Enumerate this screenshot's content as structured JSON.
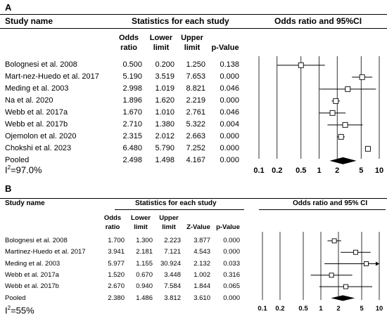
{
  "chart_data": [
    {
      "type": "forest",
      "panel": "A",
      "headers": {
        "study": "Study name",
        "stats_group": "Statistics for each study",
        "plot_group": "Odds ratio and 95%CI",
        "columns": [
          [
            "Odds",
            "ratio"
          ],
          [
            "Lower",
            "limit"
          ],
          [
            "Upper",
            "limit"
          ],
          [
            "",
            "p-Value"
          ]
        ]
      },
      "x_scale": "log",
      "xlim": [
        0.1,
        10
      ],
      "ticks": [
        "0.1",
        "0.2",
        "0.5",
        "1",
        "2",
        "5",
        "10"
      ],
      "rows": [
        {
          "study": "Bolognesi et al. 2008",
          "or": "0.500",
          "lower": "0.200",
          "upper": "1.250",
          "p": "0.138",
          "or_v": 0.5,
          "lo_v": 0.2,
          "hi_v": 1.25
        },
        {
          "study": "Mart-nez-Huedo et al. 2017",
          "or": "5.190",
          "lower": "3.519",
          "upper": "7.653",
          "p": "0.000",
          "or_v": 5.19,
          "lo_v": 3.519,
          "hi_v": 7.653
        },
        {
          "study": "Meding et al. 2003",
          "or": "2.998",
          "lower": "1.019",
          "upper": "8.821",
          "p": "0.046",
          "or_v": 2.998,
          "lo_v": 1.019,
          "hi_v": 8.821
        },
        {
          "study": "Na et al. 2020",
          "or": "1.896",
          "lower": "1.620",
          "upper": "2.219",
          "p": "0.000",
          "or_v": 1.896,
          "lo_v": 1.62,
          "hi_v": 2.219
        },
        {
          "study": "Webb et al. 2017a",
          "or": "1.670",
          "lower": "1.010",
          "upper": "2.761",
          "p": "0.046",
          "or_v": 1.67,
          "lo_v": 1.01,
          "hi_v": 2.761
        },
        {
          "study": "Webb et al. 2017b",
          "or": "2.710",
          "lower": "1.380",
          "upper": "5.322",
          "p": "0.004",
          "or_v": 2.71,
          "lo_v": 1.38,
          "hi_v": 5.322
        },
        {
          "study": "Ojemolon et al. 2020",
          "or": "2.315",
          "lower": "2.012",
          "upper": "2.663",
          "p": "0.000",
          "or_v": 2.315,
          "lo_v": 2.012,
          "hi_v": 2.663
        },
        {
          "study": "Chokshi et al. 2023",
          "or": "6.480",
          "lower": "5.790",
          "upper": "7.252",
          "p": "0.000",
          "or_v": 6.48,
          "lo_v": 5.79,
          "hi_v": 7.252
        }
      ],
      "pooled": {
        "study": "Pooled",
        "or": "2.498",
        "lower": "1.498",
        "upper": "4.167",
        "p": "0.000",
        "or_v": 2.498,
        "lo_v": 1.498,
        "hi_v": 4.167
      },
      "heterogeneity": {
        "prefix": "I",
        "sup": "2",
        "value": "=97.0%"
      }
    },
    {
      "type": "forest",
      "panel": "B",
      "headers": {
        "study": "Study name",
        "stats_group": "Statistics for each study",
        "plot_group": "Odds ratio and 95% CI",
        "columns": [
          [
            "Odds",
            "ratio"
          ],
          [
            "Lower",
            "limit"
          ],
          [
            "Upper",
            "limit"
          ],
          [
            "",
            "Z-Value"
          ],
          [
            "",
            "p-Value"
          ]
        ]
      },
      "x_scale": "log",
      "xlim": [
        0.1,
        10
      ],
      "ticks": [
        "0.1",
        "0.2",
        "0.5",
        "1",
        "2",
        "5",
        "10"
      ],
      "rows": [
        {
          "study": "Bolognesi et al. 2008",
          "or": "1.700",
          "lower": "1.300",
          "upper": "2.223",
          "z": "3.877",
          "p": "0.000",
          "or_v": 1.7,
          "lo_v": 1.3,
          "hi_v": 2.223
        },
        {
          "study": "Martinez-Huedo et al. 2017",
          "or": "3.941",
          "lower": "2.181",
          "upper": "7.121",
          "z": "4.543",
          "p": "0.000",
          "or_v": 3.941,
          "lo_v": 2.181,
          "hi_v": 7.121
        },
        {
          "study": "Meding et al. 2003",
          "or": "5.977",
          "lower": "1.155",
          "upper": "30.924",
          "z": "2.132",
          "p": "0.033",
          "or_v": 5.977,
          "lo_v": 1.155,
          "hi_v": 30.924
        },
        {
          "study": "Webb et al. 2017a",
          "or": "1.520",
          "lower": "0.670",
          "upper": "3.448",
          "z": "1.002",
          "p": "0.316",
          "or_v": 1.52,
          "lo_v": 0.67,
          "hi_v": 3.448
        },
        {
          "study": "Webb et al. 2017b",
          "or": "2.670",
          "lower": "0.940",
          "upper": "7.584",
          "z": "1.844",
          "p": "0.065",
          "or_v": 2.67,
          "lo_v": 0.94,
          "hi_v": 7.584
        }
      ],
      "pooled": {
        "study": "Pooled",
        "or": "2.380",
        "lower": "1.486",
        "upper": "3.812",
        "z": "3.610",
        "p": "0.000",
        "or_v": 2.38,
        "lo_v": 1.486,
        "hi_v": 3.812
      },
      "heterogeneity": {
        "prefix": "I",
        "sup": "2",
        "value": "=55%"
      }
    }
  ]
}
